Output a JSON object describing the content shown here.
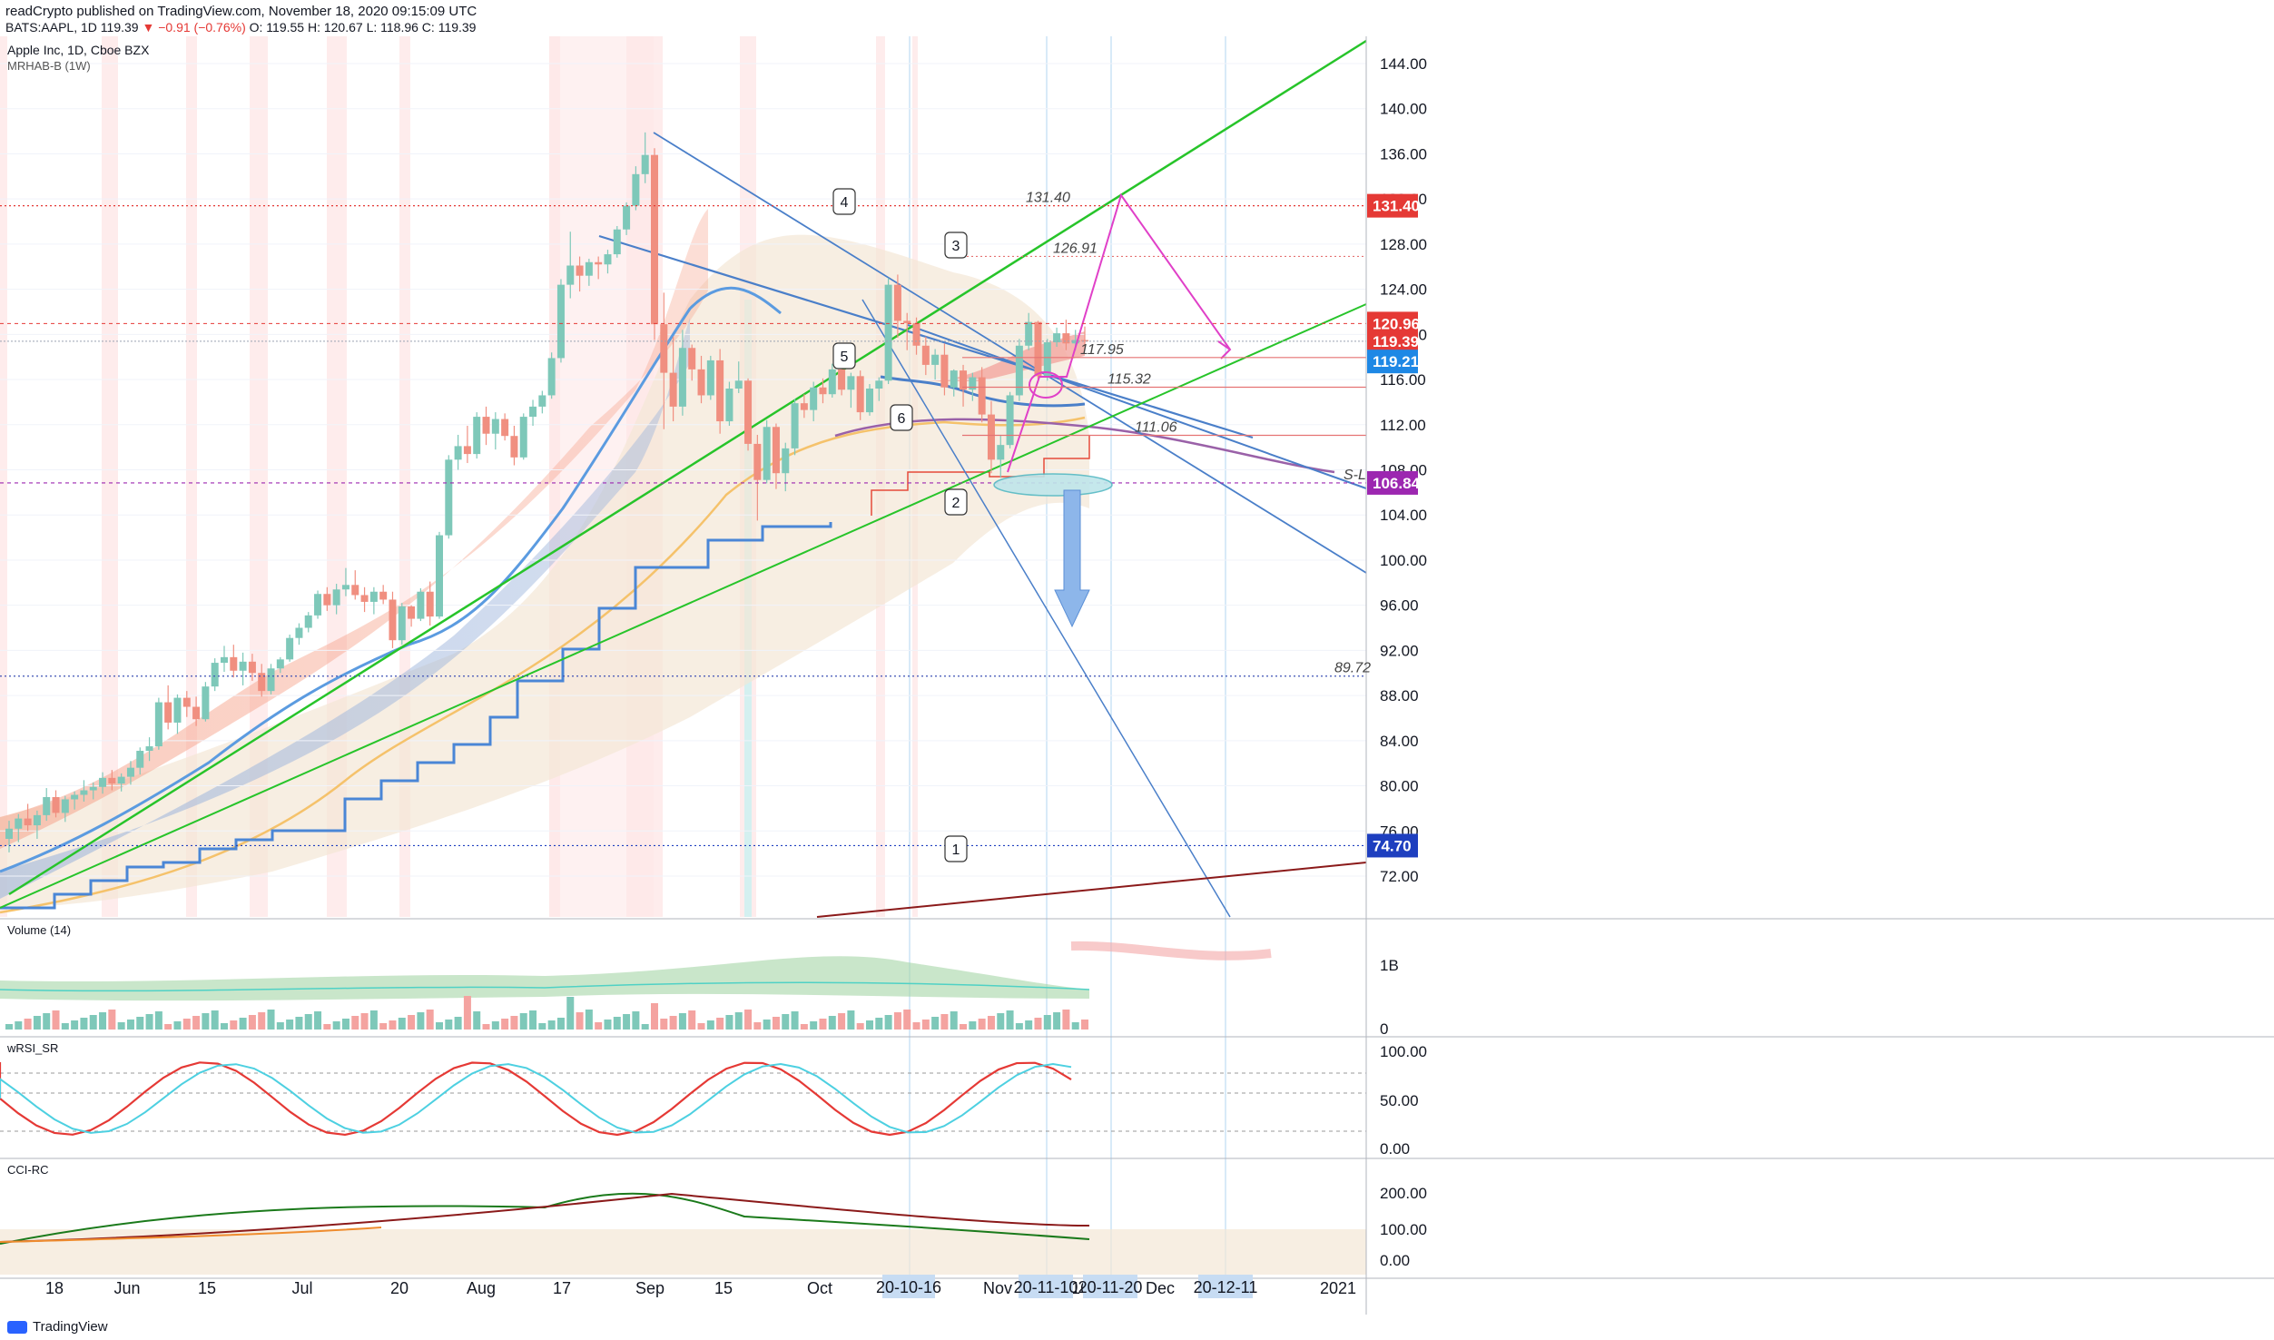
{
  "header": {
    "publish_line": "readCrypto published on TradingView.com, November 18, 2020 09:15:09 UTC",
    "symbol": "BATS:AAPL, 1D",
    "last": "119.39",
    "change": "▼ −0.91 (−0.76%)",
    "ohlc": "O: 119.55 H: 120.67 L: 118.96 C: 119.39"
  },
  "main_pane": {
    "title": "Apple Inc, 1D, Cboe BZX",
    "indicator": "MRHAB-B (1W)"
  },
  "price_axis": {
    "ticks": [
      "144.00",
      "140.00",
      "136.00",
      "132.00",
      "128.00",
      "124.00",
      "120.00",
      "116.00",
      "112.00",
      "108.00",
      "104.00",
      "100.00",
      "96.00",
      "92.00",
      "88.00",
      "84.00",
      "80.00",
      "76.00",
      "72.00"
    ],
    "badges": [
      {
        "label": "131.40",
        "color": "#e53935"
      },
      {
        "label": "120.96",
        "color": "#e53935"
      },
      {
        "label": "119.39",
        "color": "#e53935"
      },
      {
        "label": "119.21",
        "color": "#1e88e5"
      },
      {
        "label": "106.84",
        "color": "#9c27b0"
      },
      {
        "label": "74.70",
        "color": "#1e3fbf"
      }
    ]
  },
  "levels": [
    {
      "label": "131.40",
      "price": 131.4,
      "color": "#e53935"
    },
    {
      "label": "126.91",
      "price": 126.91,
      "color": "#e57373"
    },
    {
      "label": "117.95",
      "price": 117.95,
      "color": "#e57373"
    },
    {
      "label": "115.32",
      "price": 115.32,
      "color": "#e57373"
    },
    {
      "label": "111.06",
      "price": 111.06,
      "color": "#e57373"
    },
    {
      "label": "89.72",
      "price": 89.72,
      "color": "#3f51b5"
    },
    {
      "label": "S-L",
      "price": 106.84,
      "color": "#9c27b0"
    }
  ],
  "wave_labels": [
    "1",
    "2",
    "3",
    "4",
    "5",
    "6"
  ],
  "time_axis": {
    "labels": [
      "18",
      "Jun",
      "15",
      "Jul",
      "20",
      "Aug",
      "17",
      "Sep",
      "15",
      "Oct",
      "Nov",
      "16",
      "Dec",
      "2021"
    ],
    "highlight_dates": [
      "20-10-16",
      "20-11-10",
      "20-11-20",
      "20-12-11"
    ]
  },
  "volume_pane": {
    "title": "Volume (14)",
    "ticks": [
      "1B",
      "0"
    ]
  },
  "rsi_pane": {
    "title": "wRSI_SR",
    "ticks": [
      "100.00",
      "50.00",
      "0.00"
    ]
  },
  "cci_pane": {
    "title": "CCI-RC",
    "ticks": [
      "200.00",
      "100.00",
      "0.00"
    ]
  },
  "footer": {
    "brand": "TradingView"
  },
  "chart_data": {
    "type": "candlestick",
    "x_range": [
      "2020-05-12",
      "2021-01-04"
    ],
    "y_range": [
      68,
      146
    ],
    "candles_ohlc": [
      [
        75.3,
        76.9,
        74.1,
        76.2
      ],
      [
        76.2,
        77.5,
        75.0,
        77.1
      ],
      [
        77.1,
        78.4,
        76.0,
        76.5
      ],
      [
        76.5,
        77.8,
        75.3,
        77.4
      ],
      [
        77.4,
        79.8,
        76.9,
        79.0
      ],
      [
        79.0,
        79.6,
        77.2,
        77.6
      ],
      [
        77.6,
        79.1,
        76.8,
        78.8
      ],
      [
        78.8,
        79.5,
        77.9,
        79.2
      ],
      [
        79.2,
        80.5,
        78.6,
        79.6
      ],
      [
        79.6,
        80.3,
        78.8,
        79.9
      ],
      [
        79.9,
        81.2,
        79.3,
        80.7
      ],
      [
        80.7,
        81.4,
        79.6,
        80.2
      ],
      [
        80.2,
        81.1,
        79.5,
        80.8
      ],
      [
        80.8,
        82.2,
        80.1,
        81.6
      ],
      [
        81.6,
        83.4,
        81.0,
        83.1
      ],
      [
        83.1,
        84.3,
        82.2,
        83.5
      ],
      [
        83.5,
        87.8,
        83.2,
        87.4
      ],
      [
        87.4,
        88.9,
        85.0,
        85.6
      ],
      [
        85.6,
        88.1,
        84.6,
        87.8
      ],
      [
        87.8,
        88.4,
        86.1,
        87.0
      ],
      [
        87.0,
        87.9,
        85.3,
        85.9
      ],
      [
        85.9,
        89.2,
        85.7,
        88.8
      ],
      [
        88.8,
        91.3,
        88.4,
        90.9
      ],
      [
        90.9,
        92.4,
        90.1,
        91.4
      ],
      [
        91.4,
        92.5,
        89.6,
        90.2
      ],
      [
        90.2,
        91.8,
        88.9,
        91.0
      ],
      [
        91.0,
        91.7,
        89.3,
        90.0
      ],
      [
        90.0,
        90.8,
        87.9,
        88.4
      ],
      [
        88.4,
        90.8,
        88.1,
        90.4
      ],
      [
        90.4,
        91.4,
        90.0,
        91.2
      ],
      [
        91.2,
        93.4,
        91.0,
        93.1
      ],
      [
        93.1,
        94.4,
        92.5,
        94.0
      ],
      [
        94.0,
        95.4,
        93.6,
        95.1
      ],
      [
        95.1,
        97.3,
        94.8,
        97.0
      ],
      [
        97.0,
        97.6,
        95.5,
        96.0
      ],
      [
        96.0,
        97.9,
        95.2,
        97.4
      ],
      [
        97.4,
        99.3,
        96.8,
        97.8
      ],
      [
        97.8,
        99.1,
        96.5,
        96.9
      ],
      [
        96.9,
        97.6,
        95.4,
        96.3
      ],
      [
        96.3,
        97.6,
        95.2,
        97.2
      ],
      [
        97.2,
        97.8,
        96.1,
        96.5
      ],
      [
        96.5,
        97.2,
        92.2,
        92.9
      ],
      [
        92.9,
        96.2,
        92.5,
        95.9
      ],
      [
        95.9,
        96.0,
        94.1,
        94.8
      ],
      [
        94.8,
        97.5,
        94.6,
        97.2
      ],
      [
        97.2,
        98.1,
        94.2,
        95.0
      ],
      [
        95.0,
        102.5,
        94.8,
        102.2
      ],
      [
        102.2,
        109.3,
        101.9,
        108.9
      ],
      [
        108.9,
        111.1,
        108.0,
        110.1
      ],
      [
        110.1,
        111.9,
        108.6,
        109.4
      ],
      [
        109.4,
        113.1,
        109.0,
        112.7
      ],
      [
        112.7,
        113.6,
        110.2,
        111.2
      ],
      [
        111.2,
        113.1,
        109.8,
        112.5
      ],
      [
        112.5,
        113.0,
        110.6,
        111.0
      ],
      [
        111.0,
        111.9,
        108.4,
        109.1
      ],
      [
        109.1,
        113.0,
        108.9,
        112.7
      ],
      [
        112.7,
        114.2,
        111.9,
        113.6
      ],
      [
        113.6,
        115.0,
        113.0,
        114.6
      ],
      [
        114.6,
        118.4,
        114.3,
        117.9
      ],
      [
        117.9,
        124.9,
        117.5,
        124.4
      ],
      [
        124.4,
        129.1,
        123.2,
        126.1
      ],
      [
        126.1,
        126.9,
        123.8,
        125.2
      ],
      [
        125.2,
        126.7,
        124.3,
        126.4
      ],
      [
        126.4,
        126.9,
        124.9,
        126.2
      ],
      [
        126.2,
        127.5,
        125.4,
        127.1
      ],
      [
        127.1,
        129.6,
        126.8,
        129.3
      ],
      [
        129.3,
        131.7,
        128.8,
        131.4
      ],
      [
        131.4,
        134.9,
        131.0,
        134.2
      ],
      [
        134.2,
        137.9,
        133.4,
        135.9
      ],
      [
        135.9,
        136.5,
        119.5,
        120.9
      ],
      [
        120.9,
        123.7,
        111.6,
        116.6
      ],
      [
        116.6,
        119.8,
        112.3,
        113.6
      ],
      [
        113.6,
        120.4,
        112.8,
        118.8
      ],
      [
        118.8,
        119.1,
        115.9,
        116.9
      ],
      [
        116.9,
        118.1,
        113.9,
        114.6
      ],
      [
        114.6,
        118.1,
        114.2,
        117.7
      ],
      [
        117.7,
        118.7,
        111.2,
        112.3
      ],
      [
        112.3,
        115.8,
        111.9,
        115.2
      ],
      [
        115.2,
        117.6,
        114.8,
        115.9
      ],
      [
        115.9,
        116.1,
        109.7,
        110.3
      ],
      [
        110.3,
        111.1,
        103.5,
        107.1
      ],
      [
        107.1,
        112.4,
        106.8,
        111.8
      ],
      [
        111.8,
        112.1,
        106.3,
        107.7
      ],
      [
        107.7,
        110.4,
        106.1,
        109.9
      ],
      [
        109.9,
        114.3,
        109.3,
        113.9
      ],
      [
        113.9,
        114.7,
        112.6,
        113.3
      ],
      [
        113.3,
        115.8,
        112.3,
        115.3
      ],
      [
        115.3,
        116.1,
        113.9,
        114.7
      ],
      [
        114.7,
        117.4,
        114.4,
        116.9
      ],
      [
        116.9,
        117.7,
        114.6,
        115.1
      ],
      [
        115.1,
        116.6,
        113.5,
        116.3
      ],
      [
        116.3,
        116.8,
        112.4,
        113.1
      ],
      [
        113.1,
        115.6,
        112.8,
        115.2
      ],
      [
        115.2,
        116.2,
        114.1,
        115.9
      ],
      [
        115.9,
        125.0,
        115.6,
        124.4
      ],
      [
        124.4,
        125.3,
        119.7,
        121.2
      ],
      [
        121.2,
        121.9,
        118.6,
        121.0
      ],
      [
        121.0,
        121.5,
        118.2,
        119.0
      ],
      [
        119.0,
        119.8,
        116.4,
        117.3
      ],
      [
        117.3,
        118.7,
        116.0,
        118.2
      ],
      [
        118.2,
        119.2,
        114.6,
        115.3
      ],
      [
        115.3,
        116.9,
        114.5,
        116.8
      ],
      [
        116.8,
        117.3,
        113.6,
        115.1
      ],
      [
        115.1,
        116.6,
        114.1,
        116.2
      ],
      [
        116.2,
        117.1,
        112.2,
        112.9
      ],
      [
        112.9,
        114.1,
        107.7,
        108.9
      ],
      [
        108.9,
        111.1,
        107.3,
        110.2
      ],
      [
        110.2,
        114.9,
        109.9,
        114.6
      ],
      [
        114.6,
        119.6,
        114.1,
        119.0
      ],
      [
        119.0,
        121.9,
        118.6,
        121.1
      ],
      [
        121.1,
        121.2,
        116.0,
        116.3
      ],
      [
        116.3,
        119.6,
        115.9,
        119.3
      ],
      [
        119.3,
        120.6,
        118.9,
        120.1
      ],
      [
        120.1,
        121.3,
        118.6,
        119.2
      ],
      [
        119.2,
        120.4,
        118.6,
        119.5
      ],
      [
        119.5,
        120.7,
        118.9,
        119.4
      ]
    ],
    "trend_lines": [
      "wedge upper 137.5 to 106.8",
      "green support rising",
      "green channel to 144+",
      "projection to 131.40 then down",
      "blue arrow down"
    ]
  }
}
